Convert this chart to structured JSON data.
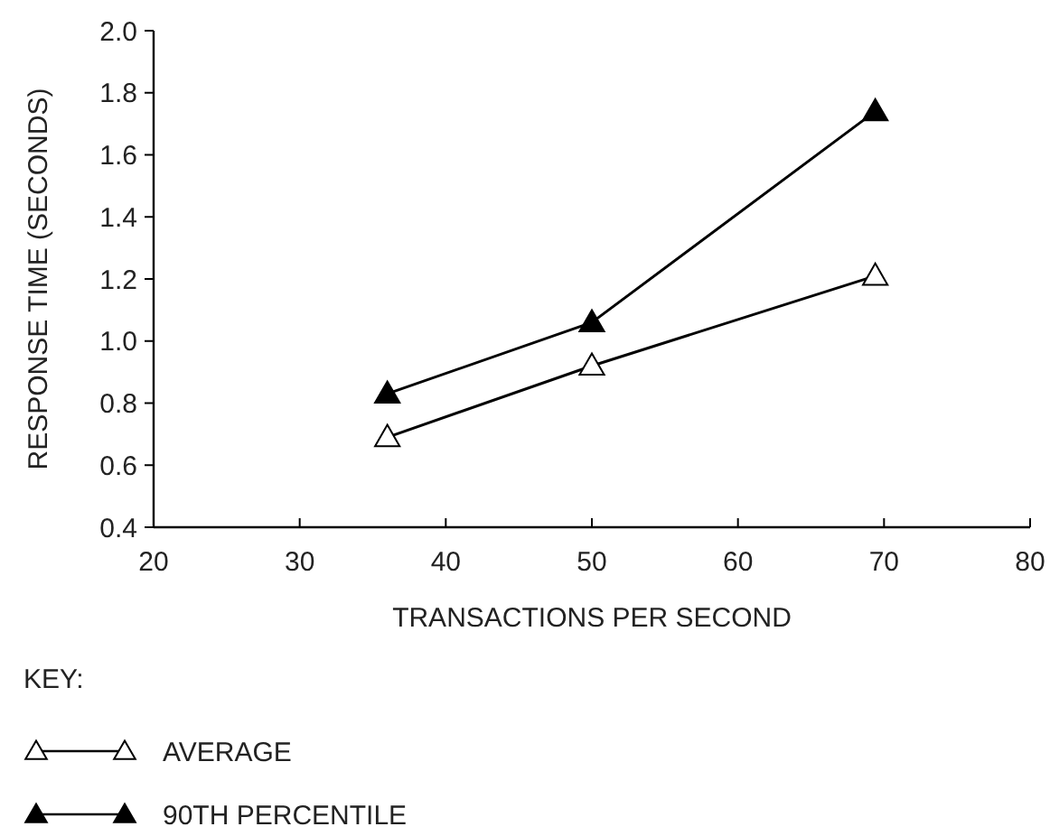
{
  "chart_data": {
    "type": "line",
    "xlabel": "TRANSACTIONS PER SECOND",
    "ylabel": "RESPONSE TIME (SECONDS)",
    "legend_title": "KEY:",
    "legend": "bottom left",
    "marker": "triangle",
    "line_style": "solid",
    "grid": false,
    "x": [
      36,
      50,
      69.4
    ],
    "xlim": [
      20,
      80
    ],
    "xticks": [
      20,
      30,
      40,
      50,
      60,
      70,
      80
    ],
    "ylim": [
      0.4,
      2.0
    ],
    "yticks": [
      {
        "value": 0.4,
        "label": "0.4"
      },
      {
        "value": 0.6,
        "label": "0.6"
      },
      {
        "value": 0.8,
        "label": "0.8"
      },
      {
        "value": 1.0,
        "label": "1.0"
      },
      {
        "value": 1.2,
        "label": "1.2"
      },
      {
        "value": 1.4,
        "label": "1.4"
      },
      {
        "value": 1.6,
        "label": "1.6"
      },
      {
        "value": 1.8,
        "label": "1.8"
      },
      {
        "value": 2.0,
        "label": "2.0"
      }
    ],
    "series": [
      {
        "name": "AVERAGE",
        "color": "#000000",
        "values": [
          0.69,
          0.92,
          1.21
        ]
      },
      {
        "name": "90TH PERCENTILE",
        "color": "#000000",
        "values": [
          0.83,
          1.06,
          1.74
        ]
      }
    ]
  }
}
